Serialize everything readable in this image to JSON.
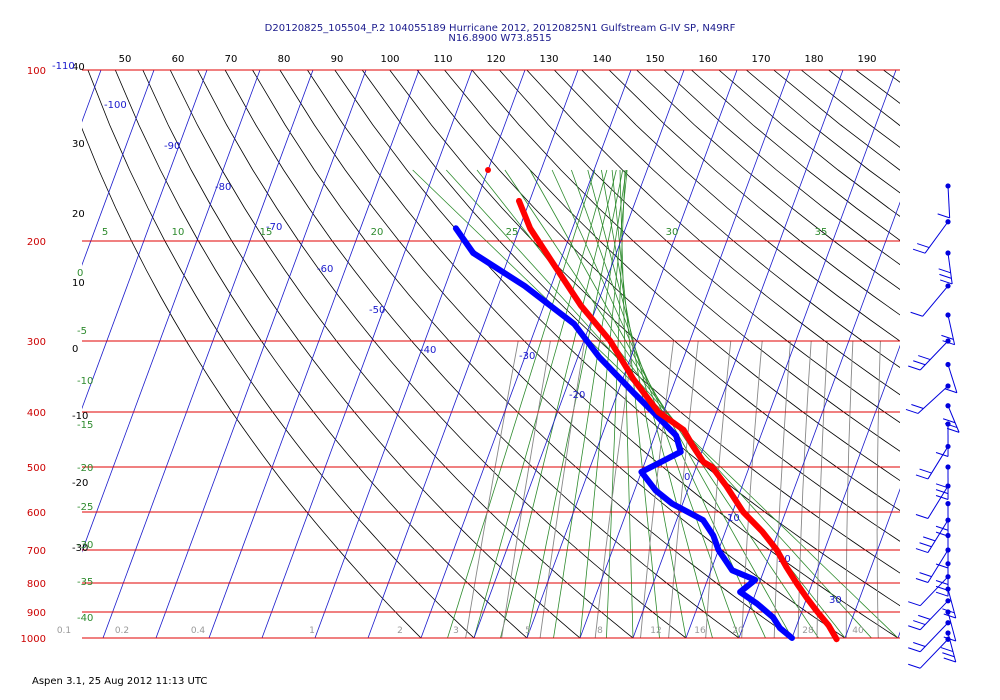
{
  "header": {
    "line1": "D20120825_105504_P.2 104055189 Hurricane 2012, 20120825N1 Gulfstream G-IV SP, N49RF",
    "line2": "N16.8900 W73.8515"
  },
  "footer": {
    "text": "Aspen 3.1, 25 Aug 2012  11:13 UTC"
  },
  "colors": {
    "isobar": "#e00000",
    "isotherm": "#1a1acc",
    "adiabat": "#000000",
    "moist_adiabat": "#2e8b2e",
    "mixing_ratio": "#888888",
    "temperature": "#ff0000",
    "dewpoint": "#0000ff",
    "wind_barb": "#0000dd"
  },
  "chart_data": {
    "type": "skew-t",
    "pressure_levels": [
      100,
      200,
      300,
      400,
      500,
      600,
      700,
      800,
      900,
      1000
    ],
    "top_axis_labels": [
      "50",
      "60",
      "70",
      "80",
      "90",
      "100",
      "110",
      "120",
      "130",
      "140",
      "150",
      "160",
      "170",
      "180",
      "190"
    ],
    "isotherm_labels": [
      "-110",
      "-100",
      "-90",
      "-80",
      "-70",
      "-60",
      "-50",
      "-40",
      "-30",
      "-20",
      "0",
      "10",
      "20",
      "30"
    ],
    "left_labels": [
      "40",
      "30",
      "20",
      "10",
      "0",
      "-10",
      "-20",
      "-30"
    ],
    "moist_left_labels": [
      "0",
      "-5",
      "-10",
      "-15",
      "-20",
      "-25",
      "-30",
      "-35",
      "-40"
    ],
    "moist_top_labels": [
      "5",
      "10",
      "15",
      "20",
      "25",
      "30",
      "35"
    ],
    "mixing_ratio_labels": [
      "0.1",
      "0.2",
      "0.4",
      "1",
      "2",
      "3",
      "5",
      "8",
      "12",
      "16",
      "20",
      "28",
      "40"
    ],
    "temperature_profile": [
      {
        "p": 170,
        "t": -62
      },
      {
        "p": 190,
        "t": -58
      },
      {
        "p": 220,
        "t": -51
      },
      {
        "p": 260,
        "t": -43
      },
      {
        "p": 300,
        "t": -35
      },
      {
        "p": 350,
        "t": -28
      },
      {
        "p": 400,
        "t": -21
      },
      {
        "p": 430,
        "t": -15
      },
      {
        "p": 460,
        "t": -12
      },
      {
        "p": 490,
        "t": -9
      },
      {
        "p": 500,
        "t": -7
      },
      {
        "p": 540,
        "t": -3
      },
      {
        "p": 600,
        "t": 2
      },
      {
        "p": 650,
        "t": 7
      },
      {
        "p": 700,
        "t": 11
      },
      {
        "p": 750,
        "t": 14
      },
      {
        "p": 800,
        "t": 17
      },
      {
        "p": 850,
        "t": 20
      },
      {
        "p": 900,
        "t": 23
      },
      {
        "p": 950,
        "t": 26
      },
      {
        "p": 1005,
        "t": 28.5
      }
    ],
    "dewpoint_profile": [
      {
        "p": 190,
        "t": -72
      },
      {
        "p": 210,
        "t": -67
      },
      {
        "p": 240,
        "t": -55
      },
      {
        "p": 280,
        "t": -43
      },
      {
        "p": 320,
        "t": -36
      },
      {
        "p": 370,
        "t": -27
      },
      {
        "p": 400,
        "t": -22
      },
      {
        "p": 440,
        "t": -16
      },
      {
        "p": 470,
        "t": -14
      },
      {
        "p": 490,
        "t": -17
      },
      {
        "p": 510,
        "t": -20
      },
      {
        "p": 550,
        "t": -16
      },
      {
        "p": 580,
        "t": -12
      },
      {
        "p": 620,
        "t": -5
      },
      {
        "p": 660,
        "t": -2
      },
      {
        "p": 700,
        "t": 0
      },
      {
        "p": 760,
        "t": 4
      },
      {
        "p": 790,
        "t": 9
      },
      {
        "p": 830,
        "t": 7
      },
      {
        "p": 870,
        "t": 11
      },
      {
        "p": 920,
        "t": 15
      },
      {
        "p": 960,
        "t": 17
      },
      {
        "p": 1000,
        "t": 20
      }
    ],
    "wind_barb_levels": [
      160,
      185,
      210,
      240,
      270,
      300,
      330,
      360,
      390,
      420,
      460,
      500,
      540,
      580,
      620,
      660,
      700,
      740,
      780,
      820,
      860,
      900,
      940,
      980,
      1005
    ]
  }
}
